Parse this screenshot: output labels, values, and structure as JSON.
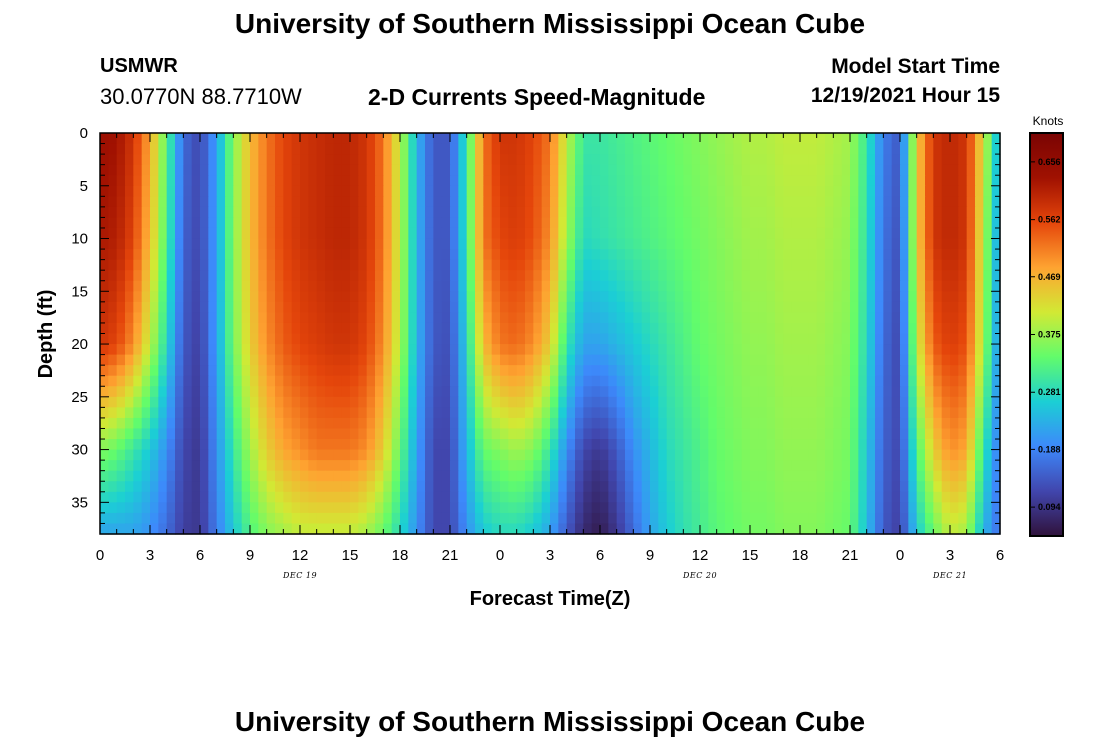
{
  "page": {
    "title": "University of Southern Mississippi Ocean Cube",
    "title_repeat": "University of Southern Mississippi Ocean Cube",
    "station_id": "USMWR",
    "station_coords": "30.0770N  88.7710W",
    "chart_heading": "2-D Currents Speed-Magnitude",
    "model_start_label": "Model Start Time",
    "model_start_value": "12/19/2021 Hour 15"
  },
  "chart_data": {
    "type": "heatmap",
    "xlabel": "Forecast Time(Z)",
    "ylabel": "Depth (ft)",
    "x_range_hours": [
      0,
      54
    ],
    "x_tick_labels": [
      "0",
      "3",
      "6",
      "9",
      "12",
      "15",
      "18",
      "21",
      "0",
      "3",
      "6",
      "9",
      "12",
      "15",
      "18",
      "21",
      "0",
      "3",
      "6"
    ],
    "day_labels": [
      {
        "label": "DEC 19",
        "at_hour": 12
      },
      {
        "label": "DEC 20",
        "at_hour": 36
      },
      {
        "label": "DEC 21",
        "at_hour": 51
      }
    ],
    "y_range_ft": [
      0,
      38
    ],
    "y_ticks": [
      0,
      5,
      10,
      15,
      20,
      25,
      30,
      35
    ],
    "colorbar": {
      "title": "Knots",
      "ticks": [
        0.094,
        0.188,
        0.281,
        0.375,
        0.469,
        0.562,
        0.656
      ],
      "range": [
        0.047,
        0.703
      ],
      "colors": [
        "#30123b",
        "#4146ad",
        "#3d89fb",
        "#1bcfd4",
        "#62fc6b",
        "#d2e934",
        "#fea331",
        "#e5460b",
        "#a01101",
        "#7a0403"
      ]
    },
    "depths_ft": [
      0,
      10,
      20,
      30,
      38
    ],
    "hours": [
      0,
      1,
      2,
      3,
      4,
      5,
      6,
      7,
      8,
      9,
      10,
      11,
      12,
      13,
      14,
      15,
      16,
      17,
      18,
      19,
      20,
      21,
      22,
      23,
      24,
      25,
      26,
      27,
      28,
      29,
      30,
      31,
      32,
      33,
      34,
      35,
      36,
      37,
      38,
      39,
      40,
      41,
      42,
      43,
      44,
      45,
      46,
      47,
      48,
      49,
      50,
      51,
      52,
      53,
      54
    ],
    "speed_knots": [
      [
        0.64,
        0.63,
        0.58,
        0.48,
        0.33,
        0.16,
        0.12,
        0.22,
        0.36,
        0.46,
        0.52,
        0.56,
        0.58,
        0.59,
        0.6,
        0.6,
        0.58,
        0.52,
        0.4,
        0.24,
        0.14,
        0.14,
        0.3,
        0.52,
        0.58,
        0.58,
        0.56,
        0.52,
        0.4,
        0.3,
        0.3,
        0.31,
        0.32,
        0.33,
        0.34,
        0.35,
        0.36,
        0.37,
        0.38,
        0.39,
        0.39,
        0.4,
        0.4,
        0.4,
        0.39,
        0.38,
        0.3,
        0.18,
        0.14,
        0.44,
        0.58,
        0.6,
        0.58,
        0.42,
        0.22
      ],
      [
        0.62,
        0.61,
        0.56,
        0.46,
        0.32,
        0.15,
        0.12,
        0.22,
        0.36,
        0.46,
        0.52,
        0.56,
        0.58,
        0.59,
        0.6,
        0.6,
        0.58,
        0.52,
        0.4,
        0.24,
        0.14,
        0.14,
        0.3,
        0.52,
        0.56,
        0.57,
        0.55,
        0.5,
        0.38,
        0.28,
        0.29,
        0.3,
        0.31,
        0.32,
        0.33,
        0.34,
        0.35,
        0.36,
        0.37,
        0.38,
        0.38,
        0.39,
        0.39,
        0.39,
        0.38,
        0.37,
        0.29,
        0.17,
        0.13,
        0.44,
        0.58,
        0.6,
        0.58,
        0.4,
        0.2
      ],
      [
        0.58,
        0.56,
        0.5,
        0.4,
        0.28,
        0.14,
        0.11,
        0.22,
        0.35,
        0.44,
        0.5,
        0.54,
        0.56,
        0.57,
        0.58,
        0.58,
        0.56,
        0.5,
        0.39,
        0.24,
        0.14,
        0.13,
        0.27,
        0.46,
        0.52,
        0.53,
        0.5,
        0.44,
        0.3,
        0.22,
        0.22,
        0.24,
        0.26,
        0.28,
        0.3,
        0.32,
        0.34,
        0.35,
        0.36,
        0.37,
        0.37,
        0.38,
        0.38,
        0.38,
        0.37,
        0.36,
        0.28,
        0.16,
        0.12,
        0.4,
        0.54,
        0.57,
        0.55,
        0.38,
        0.19
      ],
      [
        0.36,
        0.34,
        0.3,
        0.26,
        0.2,
        0.12,
        0.1,
        0.2,
        0.3,
        0.38,
        0.44,
        0.48,
        0.5,
        0.52,
        0.52,
        0.52,
        0.5,
        0.44,
        0.34,
        0.22,
        0.12,
        0.12,
        0.24,
        0.34,
        0.36,
        0.38,
        0.36,
        0.3,
        0.2,
        0.12,
        0.1,
        0.14,
        0.2,
        0.24,
        0.28,
        0.3,
        0.32,
        0.34,
        0.35,
        0.36,
        0.36,
        0.37,
        0.37,
        0.37,
        0.36,
        0.35,
        0.26,
        0.15,
        0.12,
        0.32,
        0.44,
        0.5,
        0.48,
        0.3,
        0.17
      ],
      [
        0.22,
        0.22,
        0.22,
        0.2,
        0.16,
        0.11,
        0.1,
        0.18,
        0.26,
        0.32,
        0.36,
        0.38,
        0.4,
        0.4,
        0.4,
        0.4,
        0.38,
        0.34,
        0.28,
        0.2,
        0.12,
        0.12,
        0.2,
        0.26,
        0.28,
        0.28,
        0.26,
        0.22,
        0.14,
        0.08,
        0.06,
        0.1,
        0.16,
        0.22,
        0.26,
        0.29,
        0.31,
        0.33,
        0.34,
        0.35,
        0.35,
        0.36,
        0.36,
        0.36,
        0.35,
        0.34,
        0.25,
        0.14,
        0.11,
        0.26,
        0.34,
        0.4,
        0.38,
        0.24,
        0.16
      ]
    ]
  }
}
